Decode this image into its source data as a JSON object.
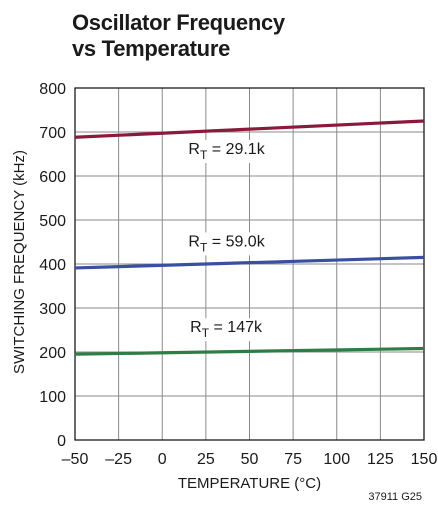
{
  "chart_data": {
    "type": "line",
    "title_lines": [
      "Oscillator Frequency",
      "vs Temperature"
    ],
    "xlabel": "TEMPERATURE (°C)",
    "ylabel": "SWITCHING FREQUENCY (kHz)",
    "xlim": [
      -50,
      150
    ],
    "ylim": [
      0,
      800
    ],
    "x_ticks": [
      -50,
      -25,
      0,
      25,
      50,
      75,
      100,
      125,
      150
    ],
    "x_tick_labels": [
      "–50",
      "–25",
      "0",
      "25",
      "50",
      "75",
      "100",
      "125",
      "150"
    ],
    "y_ticks": [
      0,
      100,
      200,
      300,
      400,
      500,
      600,
      700,
      800
    ],
    "y_tick_labels": [
      "0",
      "100",
      "200",
      "300",
      "400",
      "500",
      "600",
      "700",
      "800"
    ],
    "grid": true,
    "legend": "none",
    "series": [
      {
        "label": {
          "main": "R",
          "sub": "T",
          "value": " = 29.1k"
        },
        "color": "#8b1a3a",
        "x": [
          -50,
          150
        ],
        "y": [
          688,
          725
        ],
        "label_at": {
          "x": 15,
          "y": 650
        }
      },
      {
        "label": {
          "main": "R",
          "sub": "T",
          "value": " = 59.0k"
        },
        "color": "#3a4fa0",
        "x": [
          -50,
          150
        ],
        "y": [
          391,
          415
        ],
        "label_at": {
          "x": 15,
          "y": 440
        }
      },
      {
        "label": {
          "main": "R",
          "sub": "T",
          "value": " = 147k"
        },
        "color": "#2e7d45",
        "x": [
          -50,
          150
        ],
        "y": [
          195,
          208
        ],
        "label_at": {
          "x": 16,
          "y": 245
        }
      }
    ],
    "figure_code": "37911 G25"
  }
}
